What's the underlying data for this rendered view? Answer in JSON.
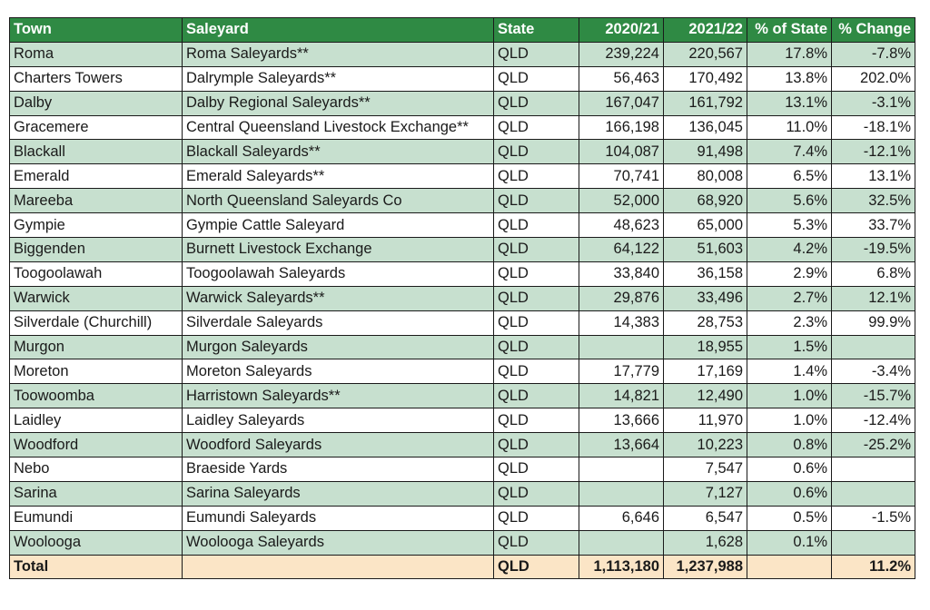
{
  "columns": [
    "Town",
    "Saleyard",
    "State",
    "2020/21",
    "2021/22",
    "% of State",
    "% Change"
  ],
  "rows": [
    [
      "Roma",
      "Roma Saleyards**",
      "QLD",
      "239,224",
      "220,567",
      "17.8%",
      "-7.8%"
    ],
    [
      "Charters Towers",
      "Dalrymple Saleyards**",
      "QLD",
      "56,463",
      "170,492",
      "13.8%",
      "202.0%"
    ],
    [
      "Dalby",
      "Dalby Regional Saleyards**",
      "QLD",
      "167,047",
      "161,792",
      "13.1%",
      "-3.1%"
    ],
    [
      "Gracemere",
      "Central Queensland Livestock Exchange**",
      "QLD",
      "166,198",
      "136,045",
      "11.0%",
      "-18.1%"
    ],
    [
      "Blackall",
      "Blackall Saleyards**",
      "QLD",
      "104,087",
      "91,498",
      "7.4%",
      "-12.1%"
    ],
    [
      "Emerald",
      "Emerald Saleyards**",
      "QLD",
      "70,741",
      "80,008",
      "6.5%",
      "13.1%"
    ],
    [
      "Mareeba",
      "North Queensland Saleyards Co",
      "QLD",
      "52,000",
      "68,920",
      "5.6%",
      "32.5%"
    ],
    [
      "Gympie",
      "Gympie Cattle Saleyard",
      "QLD",
      "48,623",
      "65,000",
      "5.3%",
      "33.7%"
    ],
    [
      "Biggenden",
      "Burnett Livestock Exchange",
      "QLD",
      "64,122",
      "51,603",
      "4.2%",
      "-19.5%"
    ],
    [
      "Toogoolawah",
      "Toogoolawah Saleyards",
      "QLD",
      "33,840",
      "36,158",
      "2.9%",
      "6.8%"
    ],
    [
      "Warwick",
      "Warwick Saleyards**",
      "QLD",
      "29,876",
      "33,496",
      "2.7%",
      "12.1%"
    ],
    [
      "Silverdale (Churchill)",
      "Silverdale Saleyards",
      "QLD",
      "14,383",
      "28,753",
      "2.3%",
      "99.9%"
    ],
    [
      "Murgon",
      "Murgon Saleyards",
      "QLD",
      "",
      "18,955",
      "1.5%",
      ""
    ],
    [
      "Moreton",
      "Moreton Saleyards",
      "QLD",
      "17,779",
      "17,169",
      "1.4%",
      "-3.4%"
    ],
    [
      "Toowoomba",
      "Harristown Saleyards**",
      "QLD",
      "14,821",
      "12,490",
      "1.0%",
      "-15.7%"
    ],
    [
      "Laidley",
      "Laidley Saleyards",
      "QLD",
      "13,666",
      "11,970",
      "1.0%",
      "-12.4%"
    ],
    [
      "Woodford",
      "Woodford Saleyards",
      "QLD",
      "13,664",
      "10,223",
      "0.8%",
      "-25.2%"
    ],
    [
      "Nebo",
      "Braeside Yards",
      "QLD",
      "",
      "7,547",
      "0.6%",
      ""
    ],
    [
      "Sarina",
      "Sarina Saleyards",
      "QLD",
      "",
      "7,127",
      "0.6%",
      ""
    ],
    [
      "Eumundi",
      "Eumundi Saleyards",
      "QLD",
      "6,646",
      "6,547",
      "0.5%",
      "-1.5%"
    ],
    [
      "Woolooga",
      "Woolooga Saleyards",
      "QLD",
      "",
      "1,628",
      "0.1%",
      ""
    ]
  ],
  "total": [
    "Total",
    "",
    "QLD",
    "1,113,180",
    "1,237,988",
    "",
    "11.2%"
  ],
  "colors": {
    "header_bg": "#2f8a44",
    "header_text": "#ffffff",
    "row_shade": "#c7e0cf",
    "total_bg": "#fbe5c6"
  }
}
